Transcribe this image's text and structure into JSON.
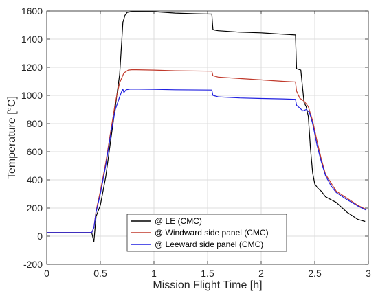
{
  "chart_data": {
    "type": "line",
    "xlabel": "Mission Flight Time [h]",
    "ylabel": "Temperature [°C]",
    "xlim": [
      0,
      3
    ],
    "ylim": [
      -200,
      1600
    ],
    "xticks": [
      0,
      0.5,
      1,
      1.5,
      2,
      2.5,
      3
    ],
    "xtick_labels": [
      "0",
      "0.5",
      "1",
      "1.5",
      "2",
      "2.5",
      "3"
    ],
    "yticks": [
      -200,
      0,
      200,
      400,
      600,
      800,
      1000,
      1200,
      1400,
      1600
    ],
    "ytick_labels": [
      "-200",
      "0",
      "200",
      "400",
      "600",
      "800",
      "1000",
      "1200",
      "1400",
      "1600"
    ],
    "grid": true,
    "legend_position": "bottom-center",
    "series": [
      {
        "name": "@ LE (CMC)",
        "color": "#000000",
        "points": [
          [
            0,
            25
          ],
          [
            0.42,
            25
          ],
          [
            0.44,
            -40
          ],
          [
            0.46,
            140
          ],
          [
            0.5,
            220
          ],
          [
            0.55,
            420
          ],
          [
            0.6,
            700
          ],
          [
            0.64,
            920
          ],
          [
            0.68,
            1150
          ],
          [
            0.7,
            1390
          ],
          [
            0.71,
            1520
          ],
          [
            0.73,
            1570
          ],
          [
            0.75,
            1590
          ],
          [
            0.8,
            1597
          ],
          [
            1.0,
            1595
          ],
          [
            1.2,
            1585
          ],
          [
            1.4,
            1580
          ],
          [
            1.54,
            1578
          ],
          [
            1.55,
            1470
          ],
          [
            1.56,
            1465
          ],
          [
            1.6,
            1460
          ],
          [
            1.8,
            1450
          ],
          [
            2.0,
            1445
          ],
          [
            2.2,
            1435
          ],
          [
            2.32,
            1430
          ],
          [
            2.33,
            1190
          ],
          [
            2.37,
            1180
          ],
          [
            2.38,
            1100
          ],
          [
            2.4,
            950
          ],
          [
            2.42,
            920
          ],
          [
            2.44,
            850
          ],
          [
            2.46,
            620
          ],
          [
            2.48,
            450
          ],
          [
            2.5,
            370
          ],
          [
            2.53,
            340
          ],
          [
            2.56,
            320
          ],
          [
            2.6,
            280
          ],
          [
            2.7,
            240
          ],
          [
            2.8,
            170
          ],
          [
            2.9,
            120
          ],
          [
            2.97,
            105
          ]
        ]
      },
      {
        "name": "@ Windward side panel (CMC)",
        "color": "#C0392B",
        "points": [
          [
            0,
            25
          ],
          [
            0.42,
            25
          ],
          [
            0.44,
            60
          ],
          [
            0.46,
            180
          ],
          [
            0.5,
            320
          ],
          [
            0.55,
            520
          ],
          [
            0.6,
            760
          ],
          [
            0.64,
            950
          ],
          [
            0.68,
            1090
          ],
          [
            0.72,
            1160
          ],
          [
            0.76,
            1180
          ],
          [
            0.8,
            1183
          ],
          [
            1.0,
            1180
          ],
          [
            1.2,
            1175
          ],
          [
            1.54,
            1172
          ],
          [
            1.55,
            1140
          ],
          [
            1.6,
            1130
          ],
          [
            1.8,
            1120
          ],
          [
            2.0,
            1110
          ],
          [
            2.2,
            1100
          ],
          [
            2.32,
            1095
          ],
          [
            2.33,
            1030
          ],
          [
            2.36,
            980
          ],
          [
            2.4,
            960
          ],
          [
            2.44,
            920
          ],
          [
            2.48,
            820
          ],
          [
            2.52,
            680
          ],
          [
            2.56,
            550
          ],
          [
            2.6,
            440
          ],
          [
            2.65,
            380
          ],
          [
            2.7,
            320
          ],
          [
            2.8,
            270
          ],
          [
            2.9,
            220
          ],
          [
            2.98,
            190
          ]
        ]
      },
      {
        "name": "@ Leeward side panel (CMC)",
        "color": "#1F1FE0",
        "points": [
          [
            0,
            25
          ],
          [
            0.42,
            25
          ],
          [
            0.44,
            60
          ],
          [
            0.46,
            170
          ],
          [
            0.5,
            300
          ],
          [
            0.55,
            500
          ],
          [
            0.6,
            740
          ],
          [
            0.64,
            900
          ],
          [
            0.68,
            990
          ],
          [
            0.7,
            1030
          ],
          [
            0.71,
            1045
          ],
          [
            0.72,
            1020
          ],
          [
            0.74,
            1040
          ],
          [
            0.78,
            1045
          ],
          [
            1.0,
            1043
          ],
          [
            1.2,
            1040
          ],
          [
            1.54,
            1038
          ],
          [
            1.55,
            1000
          ],
          [
            1.6,
            990
          ],
          [
            1.8,
            982
          ],
          [
            2.0,
            978
          ],
          [
            2.2,
            975
          ],
          [
            2.32,
            972
          ],
          [
            2.33,
            930
          ],
          [
            2.36,
            910
          ],
          [
            2.39,
            890
          ],
          [
            2.42,
            900
          ],
          [
            2.45,
            880
          ],
          [
            2.48,
            800
          ],
          [
            2.52,
            650
          ],
          [
            2.56,
            530
          ],
          [
            2.6,
            430
          ],
          [
            2.65,
            360
          ],
          [
            2.7,
            310
          ],
          [
            2.8,
            260
          ],
          [
            2.9,
            215
          ],
          [
            2.98,
            185
          ]
        ]
      }
    ]
  }
}
